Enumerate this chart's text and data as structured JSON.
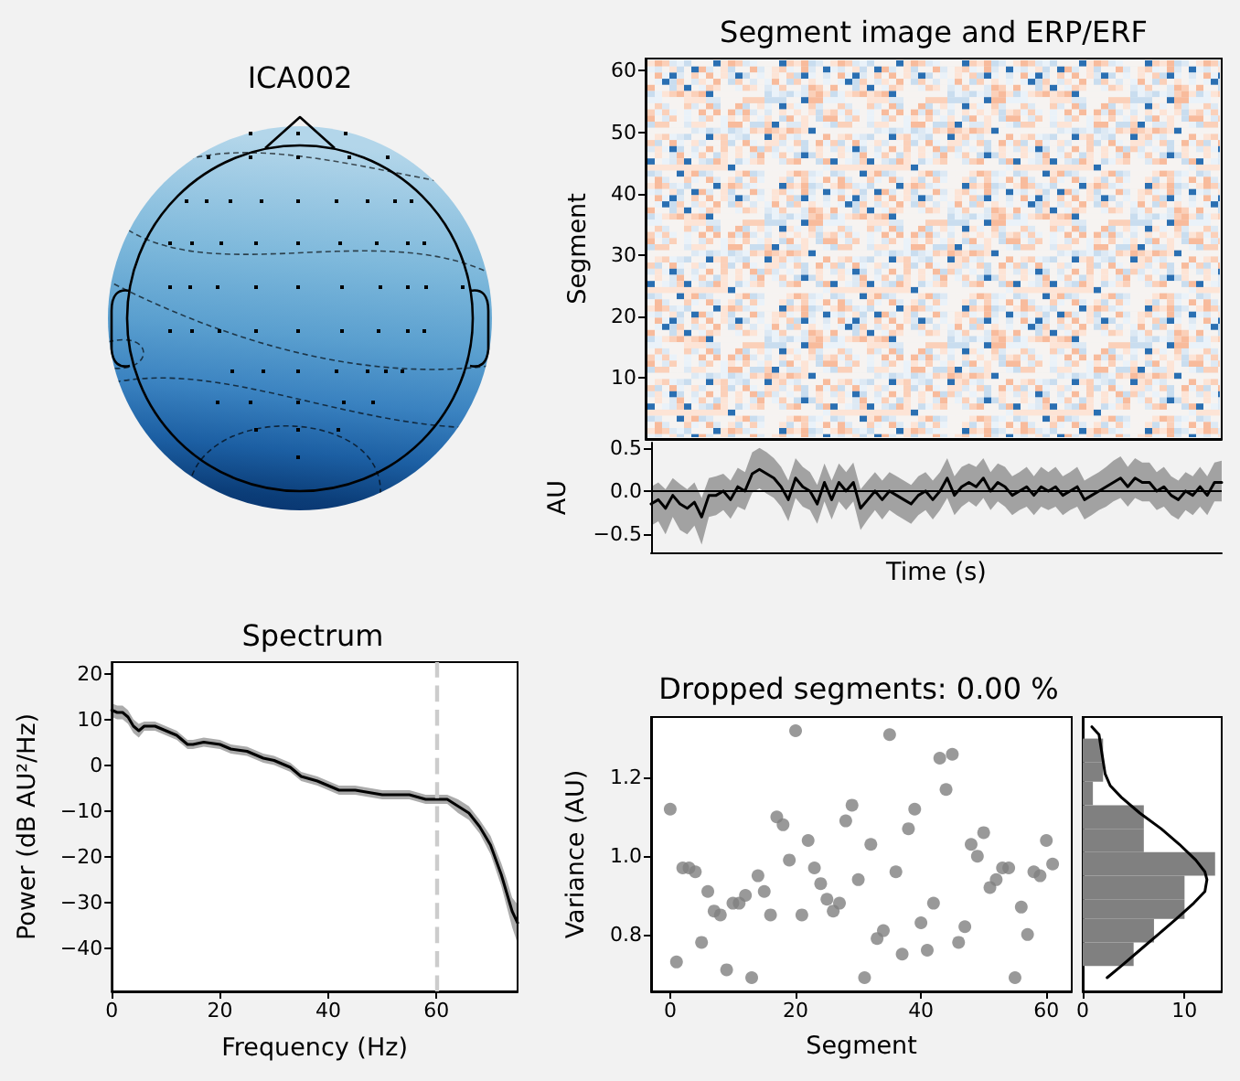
{
  "chart_data": [
    {
      "type": "other",
      "title": "ICA002"
    },
    {
      "type": "line",
      "title": "Segment image and ERP/ERF",
      "ylabel": "Segment",
      "ylim": [
        0,
        62
      ],
      "yticks": [
        10,
        20,
        30,
        40,
        50,
        60
      ],
      "tick_labels": "y",
      "categories": [
        null,
        null,
        null,
        null,
        null,
        null,
        null,
        null,
        null,
        null,
        null,
        null,
        null,
        null,
        null,
        null,
        null,
        null,
        null,
        null,
        null,
        null,
        null,
        null,
        null,
        null,
        null,
        null,
        null,
        null,
        null,
        null,
        null,
        null,
        null,
        null,
        null,
        null,
        null,
        null,
        null,
        null,
        null,
        null,
        null,
        null,
        null,
        null,
        null,
        null,
        null,
        null,
        null,
        null,
        null,
        null,
        null,
        null,
        null,
        null,
        null,
        null,
        null,
        null,
        null,
        null,
        null,
        null,
        null,
        null,
        null,
        null,
        null,
        null,
        null,
        null,
        null,
        null,
        null,
        null
      ]
    },
    {
      "type": "line",
      "xlabel": "Time (s)",
      "ylabel": "AU",
      "tick_labels": "y",
      "marker": "none",
      "categories": [
        null,
        null,
        null,
        null,
        null,
        null,
        null,
        null,
        null,
        null,
        null,
        null,
        null,
        null,
        null,
        null,
        null,
        null,
        null,
        null,
        null,
        null,
        null,
        null,
        null,
        null,
        null,
        null,
        null,
        null,
        null,
        null,
        null,
        null,
        null,
        null,
        null,
        null,
        null,
        null,
        null,
        null,
        null,
        null,
        null,
        null,
        null,
        null,
        null,
        null,
        null,
        null,
        null,
        null,
        null,
        null,
        null,
        null,
        null,
        null,
        null,
        null,
        null,
        null,
        null,
        null,
        null,
        null,
        null,
        null,
        null,
        null,
        null,
        null,
        null,
        null,
        null,
        null,
        null,
        null
      ],
      "series": [
        {
          "color": "#000000",
          "values": [
            -0.15,
            -0.1,
            -0.2,
            -0.05,
            -0.15,
            -0.2,
            -0.13,
            -0.3,
            -0.05,
            -0.05,
            0.0,
            -0.1,
            0.05,
            0.0,
            0.2,
            0.25,
            0.2,
            0.15,
            0.05,
            -0.1,
            0.15,
            0.05,
            0.0,
            -0.15,
            0.1,
            -0.1,
            0.1,
            0.0,
            0.1,
            -0.2,
            -0.1,
            0.0,
            -0.1,
            0.0,
            -0.05,
            -0.1,
            -0.15,
            -0.05,
            0.0,
            -0.1,
            0.0,
            0.15,
            -0.05,
            0.05,
            0.1,
            0.05,
            0.15,
            0.0,
            0.1,
            0.05,
            -0.05,
            0.0,
            0.05,
            -0.05,
            0.05,
            0.0,
            0.05,
            -0.05,
            0.0,
            0.05,
            -0.1,
            -0.05,
            0.0,
            0.05,
            0.1,
            0.15,
            0.05,
            0.15,
            0.1,
            0.1,
            0.0,
            0.05,
            -0.05,
            -0.1,
            0.0,
            -0.05,
            0.05,
            -0.05,
            0.1,
            0.1
          ],
          "upper": [
            0.05,
            0.1,
            0.02,
            0.15,
            0.08,
            0.02,
            0.1,
            -0.08,
            0.15,
            0.17,
            0.2,
            0.12,
            0.27,
            0.22,
            0.45,
            0.5,
            0.45,
            0.38,
            0.28,
            0.12,
            0.38,
            0.28,
            0.22,
            0.07,
            0.32,
            0.12,
            0.32,
            0.22,
            0.33,
            0.02,
            0.12,
            0.22,
            0.12,
            0.22,
            0.17,
            0.12,
            0.07,
            0.17,
            0.22,
            0.12,
            0.22,
            0.38,
            0.17,
            0.28,
            0.32,
            0.28,
            0.38,
            0.22,
            0.32,
            0.28,
            0.17,
            0.22,
            0.28,
            0.17,
            0.28,
            0.22,
            0.28,
            0.17,
            0.22,
            0.28,
            0.12,
            0.17,
            0.22,
            0.28,
            0.35,
            0.4,
            0.28,
            0.38,
            0.33,
            0.33,
            0.22,
            0.28,
            0.17,
            0.12,
            0.22,
            0.17,
            0.28,
            0.17,
            0.33,
            0.35
          ],
          "lower": [
            -0.4,
            -0.35,
            -0.5,
            -0.3,
            -0.45,
            -0.5,
            -0.4,
            -0.62,
            -0.3,
            -0.28,
            -0.22,
            -0.32,
            -0.18,
            -0.22,
            -0.02,
            0.03,
            -0.03,
            -0.08,
            -0.18,
            -0.35,
            -0.08,
            -0.18,
            -0.22,
            -0.38,
            -0.12,
            -0.33,
            -0.12,
            -0.22,
            -0.12,
            -0.45,
            -0.33,
            -0.22,
            -0.33,
            -0.22,
            -0.28,
            -0.33,
            -0.38,
            -0.28,
            -0.22,
            -0.33,
            -0.22,
            -0.08,
            -0.28,
            -0.18,
            -0.12,
            -0.18,
            -0.08,
            -0.22,
            -0.12,
            -0.18,
            -0.28,
            -0.22,
            -0.18,
            -0.28,
            -0.18,
            -0.22,
            -0.18,
            -0.28,
            -0.22,
            -0.18,
            -0.33,
            -0.28,
            -0.22,
            -0.18,
            -0.12,
            -0.08,
            -0.18,
            -0.08,
            -0.12,
            -0.12,
            -0.22,
            -0.18,
            -0.28,
            -0.33,
            -0.22,
            -0.28,
            -0.18,
            -0.28,
            -0.12,
            -0.12
          ]
        }
      ],
      "ylim": [
        -0.71,
        0.56
      ],
      "yticks": [
        {
          "value": -0.5,
          "label": "−0.5"
        },
        {
          "value": 0,
          "label": "0.0"
        },
        0.5
      ],
      "ref_lines": [
        {
          "axis": "y",
          "value": 0,
          "color": "#000000"
        }
      ]
    },
    {
      "type": "line",
      "title": "Spectrum",
      "xlabel": "Frequency (Hz)",
      "ylabel": "Power (dB AU²/Hz)",
      "marker": "none",
      "x": [
        0,
        1,
        2,
        3,
        4,
        5,
        6,
        8,
        10,
        12,
        14,
        15,
        17,
        20,
        22,
        25,
        28,
        30,
        33,
        35,
        38,
        40,
        42,
        45,
        50,
        55,
        58,
        60,
        62,
        64,
        66,
        68,
        70,
        72,
        73,
        74,
        75
      ],
      "series": [
        {
          "color": "#000000",
          "values": [
            12,
            11.5,
            11.5,
            10.5,
            8.5,
            7.5,
            8.5,
            8.5,
            7.5,
            6.5,
            4.5,
            4.5,
            5,
            4.5,
            3.5,
            3,
            1.5,
            1,
            -0.5,
            -2.5,
            -3.5,
            -4.5,
            -5.5,
            -5.5,
            -6.5,
            -6.5,
            -7.5,
            -7.5,
            -7.5,
            -9,
            -10.5,
            -13.5,
            -17.5,
            -24,
            -28,
            -32,
            -34.5
          ],
          "upper": [
            13.5,
            13,
            13,
            12,
            10,
            9,
            9.5,
            9.5,
            8.5,
            7.5,
            5.5,
            5.5,
            6,
            5.5,
            4.5,
            4,
            2.5,
            2,
            0.5,
            -1.5,
            -2.5,
            -3.5,
            -4.5,
            -4.5,
            -5.5,
            -5.5,
            -6.5,
            -6.5,
            -6.5,
            -7.5,
            -9,
            -12,
            -15.5,
            -21.5,
            -25,
            -29,
            -30.5
          ],
          "lower": [
            10.5,
            10,
            10,
            9,
            7,
            6,
            7.5,
            7.5,
            6.5,
            5.5,
            3.5,
            3.5,
            4,
            3.5,
            2.5,
            2,
            0.5,
            0,
            -1.5,
            -3.5,
            -4.5,
            -5.5,
            -6.5,
            -6.5,
            -7.5,
            -7.5,
            -8.5,
            -8.5,
            -8.5,
            -10.5,
            -12,
            -15,
            -19.5,
            -26.5,
            -31,
            -35.5,
            -39
          ]
        }
      ],
      "xlim": [
        0,
        75
      ],
      "xticks": [
        0,
        20,
        40,
        60
      ],
      "ylim": [
        -49.5,
        22.5
      ],
      "yticks": [
        {
          "value": -40,
          "label": "−40"
        },
        {
          "value": -30,
          "label": "−30"
        },
        {
          "value": -20,
          "label": "−20"
        },
        {
          "value": -10,
          "label": "−10"
        },
        0,
        10,
        20
      ],
      "ref_lines": [
        {
          "axis": "x",
          "value": 60,
          "color": "#cccccc",
          "line_style": "dashed"
        }
      ]
    },
    {
      "type": "scatter",
      "title": "Dropped segments: 0.00 %",
      "xlabel": "Segment",
      "ylabel": "Variance (AU)",
      "marker": "circle",
      "color": "#808080",
      "x": [
        0,
        1,
        2,
        3,
        4,
        5,
        6,
        7,
        8,
        9,
        10,
        11,
        12,
        13,
        14,
        15,
        16,
        17,
        18,
        19,
        20,
        21,
        22,
        23,
        24,
        25,
        26,
        27,
        28,
        29,
        30,
        31,
        32,
        33,
        34,
        35,
        36,
        37,
        38,
        39,
        40,
        41,
        42,
        43,
        44,
        45,
        46,
        47,
        48,
        49,
        50,
        51,
        52,
        53,
        54,
        55,
        56,
        57,
        58,
        59,
        60,
        61
      ],
      "values": [
        1.12,
        0.73,
        0.97,
        0.97,
        0.96,
        0.78,
        0.91,
        0.86,
        0.85,
        0.71,
        0.88,
        0.88,
        0.9,
        0.69,
        0.95,
        0.91,
        0.85,
        1.1,
        1.08,
        0.99,
        1.32,
        0.85,
        1.04,
        0.97,
        0.93,
        0.89,
        0.86,
        0.88,
        1.09,
        1.13,
        0.94,
        0.69,
        1.03,
        0.79,
        0.81,
        1.31,
        0.96,
        0.75,
        1.07,
        1.12,
        0.83,
        0.76,
        0.88,
        1.25,
        1.17,
        1.26,
        0.78,
        0.82,
        1.03,
        1.0,
        1.06,
        0.92,
        0.94,
        0.97,
        0.97,
        0.69,
        0.87,
        0.8,
        0.96,
        0.95,
        1.04,
        0.98
      ],
      "xlim": [
        -3.05,
        64.05
      ],
      "xticks": [
        0,
        20,
        40,
        60
      ],
      "ylim": [
        0.655,
        1.355
      ],
      "yticks": [
        0.8,
        {
          "value": 1.0,
          "label": "1.0"
        },
        1.2
      ]
    },
    {
      "type": "histogram",
      "orientation": "horizontal",
      "tick_labels": "x",
      "bins": [
        0.72,
        0.78,
        0.84,
        0.89,
        0.95,
        1.01,
        1.07,
        1.13,
        1.19,
        1.24,
        1.3
      ],
      "series": [
        {
          "color": "#808080",
          "values": [
            5,
            7,
            10,
            10,
            13,
            6,
            6,
            1,
            2,
            2
          ]
        },
        {
          "type": "line",
          "color": "#000000",
          "x": [
            0.69,
            0.72,
            0.76,
            0.8,
            0.84,
            0.88,
            0.91,
            0.94,
            0.96,
            0.99,
            1.03,
            1.07,
            1.11,
            1.15,
            1.18,
            1.21,
            1.26,
            1.31,
            1.33
          ],
          "values": [
            2.4,
            3.8,
            5.6,
            7.4,
            9.2,
            10.9,
            12,
            12.2,
            12,
            11.1,
            9.5,
            7.7,
            5.6,
            3.8,
            2.7,
            2.2,
            1.9,
            1.6,
            0.9
          ]
        }
      ],
      "xlim": [
        0,
        13.65
      ],
      "xticks": [
        0,
        10
      ],
      "ylim": [
        0.655,
        1.355
      ],
      "marker": "none"
    }
  ]
}
